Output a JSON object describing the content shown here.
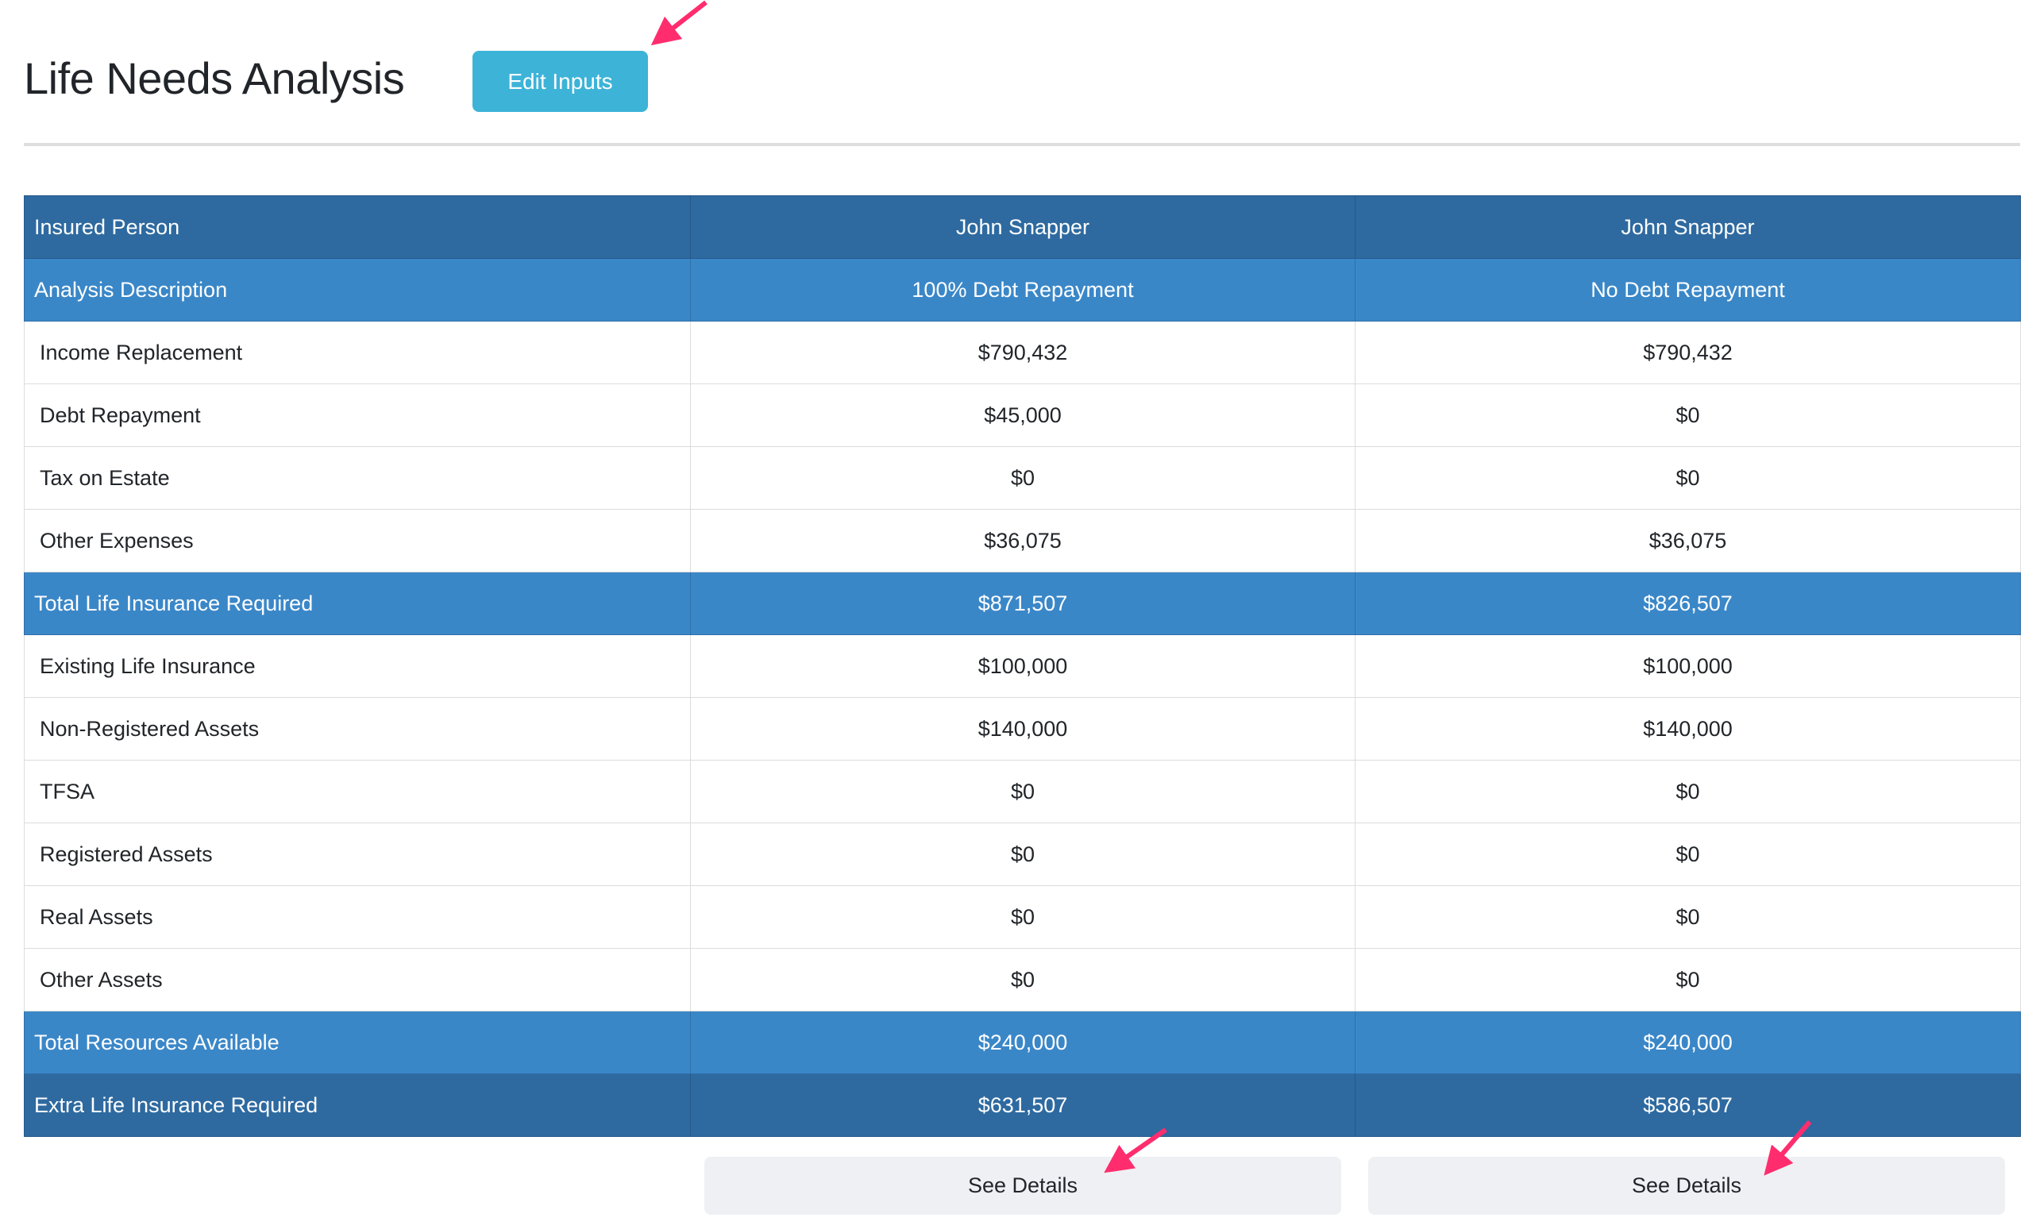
{
  "page": {
    "title": "Life Needs Analysis",
    "edit_inputs_label": "Edit Inputs"
  },
  "table": {
    "rows": [
      {
        "label": "Insured Person",
        "values": [
          "John Snapper",
          "John Snapper"
        ],
        "style": "dark"
      },
      {
        "label": "Analysis Description",
        "values": [
          "100% Debt Repayment",
          "No Debt Repayment"
        ],
        "style": "mid"
      },
      {
        "label": "Income Replacement",
        "values": [
          "$790,432",
          "$790,432"
        ],
        "style": "plain"
      },
      {
        "label": "Debt Repayment",
        "values": [
          "$45,000",
          "$0"
        ],
        "style": "plain"
      },
      {
        "label": "Tax on Estate",
        "values": [
          "$0",
          "$0"
        ],
        "style": "plain"
      },
      {
        "label": "Other Expenses",
        "values": [
          "$36,075",
          "$36,075"
        ],
        "style": "plain"
      },
      {
        "label": "Total Life Insurance Required",
        "values": [
          "$871,507",
          "$826,507"
        ],
        "style": "mid"
      },
      {
        "label": "Existing Life Insurance",
        "values": [
          "$100,000",
          "$100,000"
        ],
        "style": "plain"
      },
      {
        "label": "Non-Registered Assets",
        "values": [
          "$140,000",
          "$140,000"
        ],
        "style": "plain"
      },
      {
        "label": "TFSA",
        "values": [
          "$0",
          "$0"
        ],
        "style": "plain"
      },
      {
        "label": "Registered Assets",
        "values": [
          "$0",
          "$0"
        ],
        "style": "plain"
      },
      {
        "label": "Real Assets",
        "values": [
          "$0",
          "$0"
        ],
        "style": "plain"
      },
      {
        "label": "Other Assets",
        "values": [
          "$0",
          "$0"
        ],
        "style": "plain"
      },
      {
        "label": "Total Resources Available",
        "values": [
          "$240,000",
          "$240,000"
        ],
        "style": "mid"
      },
      {
        "label": "Extra Life Insurance Required",
        "values": [
          "$631,507",
          "$586,507"
        ],
        "style": "dark"
      }
    ]
  },
  "details_buttons": [
    "See Details",
    "See Details"
  ],
  "colors": {
    "edit_button": "#3db3d8",
    "header_dark": "#2e6aa0",
    "header_mid": "#3a87c8",
    "details_button": "#eff0f4",
    "annotation_arrow": "#ff2d6e"
  }
}
